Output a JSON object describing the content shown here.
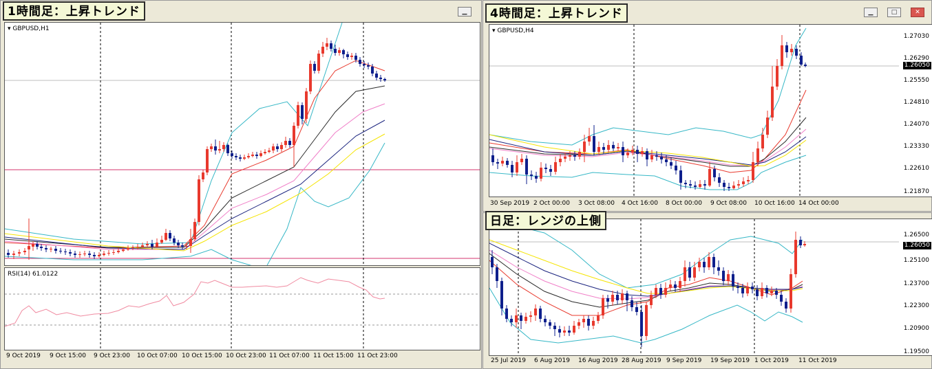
{
  "left_window": {
    "banner": "1時間足：上昇トレンド",
    "symbol": "GBPUSD,H1",
    "rsi_label": "RSI(14) 61.0122",
    "x_labels": [
      "9 Oct 2019",
      "9 Oct 15:00",
      "9 Oct 23:00",
      "10 Oct 07:00",
      "10 Oct 15:00",
      "10 Oct 23:00",
      "11 Oct 07:00",
      "11 Oct 15:00",
      "11 Oct 23:00"
    ]
  },
  "h4_window": {
    "banner": "4時間足：上昇トレンド",
    "symbol": "GBPUSD,H4",
    "y_labels": [
      "1.27030",
      "1.26290",
      "1.25550",
      "1.24810",
      "1.24070",
      "1.23330",
      "1.22610",
      "1.21870"
    ],
    "current_price": "1.26050",
    "x_labels": [
      "30 Sep 2019",
      "2 Oct 00:00",
      "3 Oct 08:00",
      "4 Oct 16:00",
      "8 Oct 00:00",
      "9 Oct 08:00",
      "10 Oct 16:00",
      "14 Oct 00:00"
    ]
  },
  "daily_window": {
    "banner": "日足：レンジの上側",
    "y_labels": [
      "1.26500",
      "1.25100",
      "1.23700",
      "1.22300",
      "1.20900",
      "1.19500"
    ],
    "current_price": "1.26050",
    "x_labels": [
      "25 Jul 2019",
      "6 Aug 2019",
      "16 Aug 2019",
      "28 Aug 2019",
      "9 Sep 2019",
      "19 Sep 2019",
      "1 Oct 2019",
      "11 Oct 2019"
    ]
  },
  "colors": {
    "bull": "#e8392d",
    "bear": "#0e1f8c",
    "bb": "#35b7c6",
    "ma_red": "#e8392d",
    "ma_black": "#2a2a2a",
    "ma_pink": "#f07fc8",
    "ma_navy": "#1a237e",
    "ma_yellow": "#f5e400",
    "rsi": "#f08aa0",
    "hline_pink": "#d6336c"
  },
  "icons": [
    "minimize-icon",
    "maximize-icon",
    "close-icon",
    "dropdown-triangle-icon"
  ]
}
